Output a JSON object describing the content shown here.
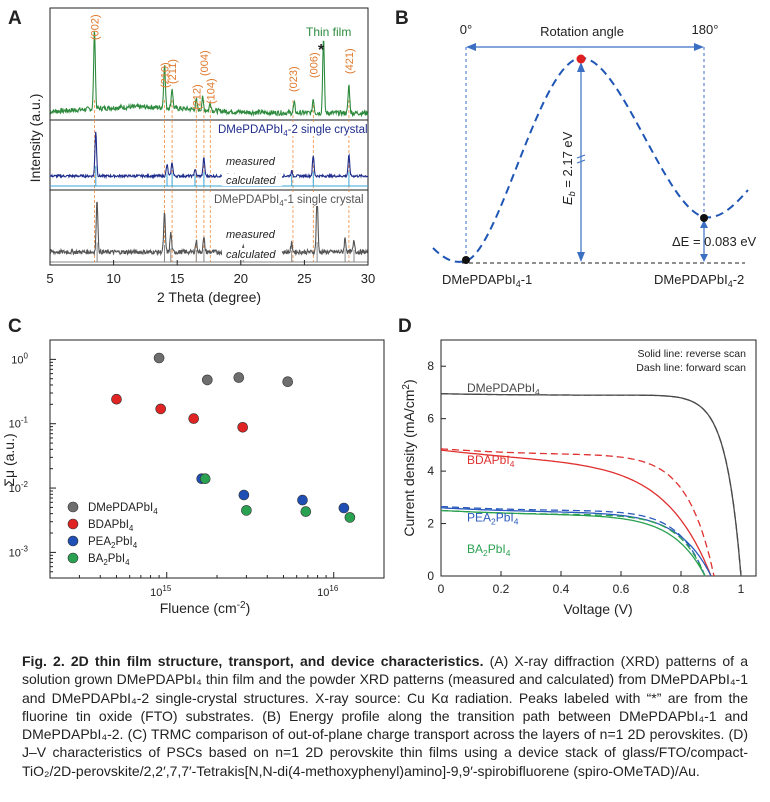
{
  "panels": {
    "A": {
      "label": "A",
      "chart_data": {
        "type": "line",
        "xlabel": "2 Theta (degree)",
        "ylabel": "Intensity (a.u.)",
        "xlim": [
          5,
          30
        ],
        "xticks": [
          "5",
          "10",
          "15",
          "20",
          "25",
          "30"
        ],
        "series": [
          {
            "name": "Thin film",
            "color": "#2e8b3e",
            "peaks": [
              [
                8.5,
                1.0
              ],
              [
                14.0,
                0.55
              ],
              [
                14.6,
                0.25
              ],
              [
                16.5,
                0.12
              ],
              [
                17.0,
                0.15
              ],
              [
                17.6,
                0.1
              ],
              [
                24.2,
                0.12
              ],
              [
                25.7,
                0.18
              ],
              [
                26.5,
                0.95
              ],
              [
                28.5,
                0.35
              ]
            ]
          },
          {
            "name": "DMePDAPbI4-2 single crystal",
            "color": "#1f2d8c",
            "peaks": [
              [
                8.6,
                1.0
              ],
              [
                14.2,
                0.25
              ],
              [
                14.6,
                0.3
              ],
              [
                16.4,
                0.15
              ],
              [
                17.1,
                0.4
              ],
              [
                24.0,
                0.1
              ],
              [
                25.7,
                0.45
              ],
              [
                28.5,
                0.45
              ]
            ]
          },
          {
            "name": "DMePDAPbI4-1 single crystal",
            "color": "#555555",
            "peaks": [
              [
                8.7,
                0.95
              ],
              [
                14.0,
                0.7
              ],
              [
                14.5,
                0.35
              ],
              [
                16.5,
                0.2
              ],
              [
                17.1,
                0.25
              ],
              [
                20.2,
                0.12
              ],
              [
                24.0,
                0.15
              ],
              [
                26.0,
                1.0
              ],
              [
                28.2,
                0.25
              ],
              [
                28.9,
                0.2
              ]
            ]
          }
        ],
        "peak_labels": [
          {
            "label": "(002)",
            "x": 8.5
          },
          {
            "label": "(210)",
            "x": 14.0
          },
          {
            "label": "(211)",
            "x": 14.6
          },
          {
            "label": "(212)",
            "x": 16.5
          },
          {
            "label": "(004)",
            "x": 17.1
          },
          {
            "label": "(104)",
            "x": 17.6
          },
          {
            "label": "(023)",
            "x": 24.1
          },
          {
            "label": "(006)",
            "x": 25.7
          },
          {
            "label": "(421)",
            "x": 28.5
          }
        ],
        "annotations": {
          "fto": "*",
          "measured": "measured",
          "calculated": "calculated"
        }
      }
    },
    "B": {
      "label": "B",
      "chart_data": {
        "type": "line",
        "title": "Rotation angle",
        "angle_start": "0°",
        "angle_end": "180°",
        "states": [
          "DMePDAPbI4-1",
          "DMePDAPbI4-2"
        ],
        "barrier_label": "E",
        "barrier_subscript": "b",
        "barrier_value": " = 2.17 eV",
        "delta_label": "ΔE = 0.083 eV",
        "barrier_eV": 2.17,
        "deltaE_eV": 0.083
      }
    },
    "C": {
      "label": "C",
      "chart_data": {
        "type": "scatter",
        "xlabel": "Fluence (cm⁻²)",
        "ylabel": "Σμ (a.u.)",
        "xscale": "log",
        "yscale": "log",
        "xlim": [
          200000000000000.0,
          2e+16
        ],
        "ylim": [
          0.0004,
          2
        ],
        "xticks": [
          {
            "v": 1000000000000000.0,
            "base": "10",
            "exp": "15"
          },
          {
            "v": 1e+16,
            "base": "10",
            "exp": "16"
          }
        ],
        "yticks": [
          {
            "v": 1,
            "base": "10",
            "exp": "0"
          },
          {
            "v": 0.1,
            "base": "10",
            "exp": "-1"
          },
          {
            "v": 0.01,
            "base": "10",
            "exp": "-2"
          },
          {
            "v": 0.001,
            "base": "10",
            "exp": "-3"
          }
        ],
        "series": [
          {
            "name": "DMePDAPbI",
            "sub": "4",
            "color": "#6e6e6e",
            "points": [
              [
                900000000000000.0,
                1.05
              ],
              [
                1750000000000000.0,
                0.48
              ],
              [
                2700000000000000.0,
                0.52
              ],
              [
                5300000000000000.0,
                0.45
              ]
            ]
          },
          {
            "name": "BDAPbI",
            "sub": "4",
            "color": "#e02424",
            "points": [
              [
                500000000000000.0,
                0.24
              ],
              [
                920000000000000.0,
                0.17
              ],
              [
                1450000000000000.0,
                0.12
              ],
              [
                2850000000000000.0,
                0.088
              ]
            ]
          },
          {
            "name": "PEA",
            "sub": "2",
            "name2": "PbI",
            "sub2": "4",
            "color": "#1f4fb5",
            "points": [
              [
                1620000000000000.0,
                0.014
              ],
              [
                2900000000000000.0,
                0.0078
              ],
              [
                6500000000000000.0,
                0.0065
              ],
              [
                1.15e+16,
                0.0049
              ]
            ]
          },
          {
            "name": "BA",
            "sub": "2",
            "name2": "PbI",
            "sub2": "4",
            "color": "#2aa150",
            "points": [
              [
                1700000000000000.0,
                0.014
              ],
              [
                3000000000000000.0,
                0.0045
              ],
              [
                6800000000000000.0,
                0.0043
              ],
              [
                1.25e+16,
                0.0035
              ]
            ]
          }
        ]
      }
    },
    "D": {
      "label": "D",
      "chart_data": {
        "type": "line",
        "xlabel": "Voltage (V)",
        "ylabel": "Current density (mA/cm²)",
        "xlim": [
          0,
          1.05
        ],
        "ylim": [
          0,
          9
        ],
        "xticks": [
          "0",
          "0.2",
          "0.4",
          "0.6",
          "0.8",
          "1"
        ],
        "yticks": [
          "0",
          "2",
          "4",
          "6",
          "8"
        ],
        "legend_lines": [
          "Solid line: reverse scan",
          "Dash line: forward scan"
        ],
        "series": [
          {
            "name": "DMePDAPbI",
            "sub": "4",
            "color": "#4a4a4a",
            "jsc": 6.95,
            "jsc_fwd": 6.95,
            "voc": 1.0,
            "voc_fwd": 1.0,
            "kind": "rect"
          },
          {
            "name": "BDAPbI",
            "sub": "4",
            "color": "#e03030",
            "jsc": 4.8,
            "jsc_fwd": 4.85,
            "voc": 0.9,
            "voc_fwd": 0.91,
            "kind": "slope"
          },
          {
            "name": "PEA",
            "sub": "2",
            "name2": "PbI",
            "sub2": "4",
            "color": "#2b5bbd",
            "jsc": 2.6,
            "jsc_fwd": 2.65,
            "voc": 0.9,
            "voc_fwd": 0.88,
            "kind": "mid"
          },
          {
            "name": "BA",
            "sub": "2",
            "name2": "PbI",
            "sub2": "4",
            "color": "#2aa150",
            "jsc": 2.5,
            "jsc_fwd": 2.5,
            "voc": 0.88,
            "voc_fwd": 0.88,
            "kind": "mid"
          }
        ]
      }
    }
  },
  "caption": {
    "lead": "Fig. 2. 2D thin film structure, transport, and device characteristics.",
    "body": " (A) X-ray diffraction (XRD) patterns of a solution grown DMePDAPbI₄ thin film and the powder XRD patterns (measured and calculated) from DMePDAPbI₄-1 and DMePDAPbI₄-2 single-crystal structures. X-ray source: Cu Kα radiation. Peaks labeled with “*” are from the fluorine tin oxide (FTO) substrates. (B) Energy profile along the transition path between DMePDAPbI₄-1 and DMePDAPbI₄-2. (C) TRMC comparison of out-of-plane charge transport across the layers of n=1 2D perovskites. (D) J–V characteristics of PSCs based on n=1 2D perovskite thin films using a device stack of glass/FTO/compact-TiO₂/2D-perovskite/2,2′,7,7′-Tetrakis[N,N-di(4-methoxyphenyl)amino]-9,9′-spirobifluorene (spiro-OMeTAD)/Au."
  }
}
